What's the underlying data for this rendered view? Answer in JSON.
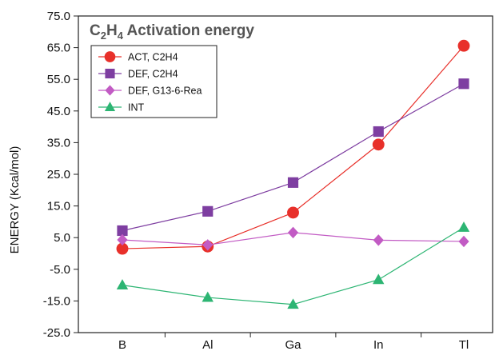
{
  "chart_data": {
    "type": "line",
    "title_parts": {
      "main": "C",
      "sub1": "2",
      "mid": "H",
      "sub2": "4",
      "rest": " Activation energy"
    },
    "xlabel": "",
    "ylabel": "ENERGY (Kcal/mol)",
    "categories": [
      "B",
      "Al",
      "Ga",
      "In",
      "Tl"
    ],
    "ylim": [
      -25,
      75
    ],
    "yticks": [
      "75.0",
      "65.0",
      "55.0",
      "45.0",
      "35.0",
      "25.0",
      "15.0",
      "5.0",
      "-5.0",
      "-15.0",
      "-25.0"
    ],
    "ytick_values": [
      75,
      65,
      55,
      45,
      35,
      25,
      15,
      5,
      -5,
      -15,
      -25
    ],
    "grid": false,
    "legend_position": "top-left",
    "series": [
      {
        "name": "ACT, C2H4",
        "color": "#e8302a",
        "marker": "circle",
        "values": [
          1.5,
          2.2,
          12.9,
          34.4,
          65.6
        ]
      },
      {
        "name": "DEF, C2H4",
        "color": "#7e3ea1",
        "marker": "square",
        "values": [
          7.2,
          13.3,
          22.4,
          38.5,
          53.6
        ]
      },
      {
        "name": "DEF, G13-6-Rea",
        "color": "#c25bc4",
        "marker": "diamond",
        "values": [
          4.3,
          2.7,
          6.6,
          4.2,
          3.8
        ]
      },
      {
        "name": "INT",
        "color": "#2db573",
        "marker": "triangle",
        "values": [
          -10.0,
          -13.9,
          -16.1,
          -8.3,
          8.2
        ]
      }
    ]
  }
}
